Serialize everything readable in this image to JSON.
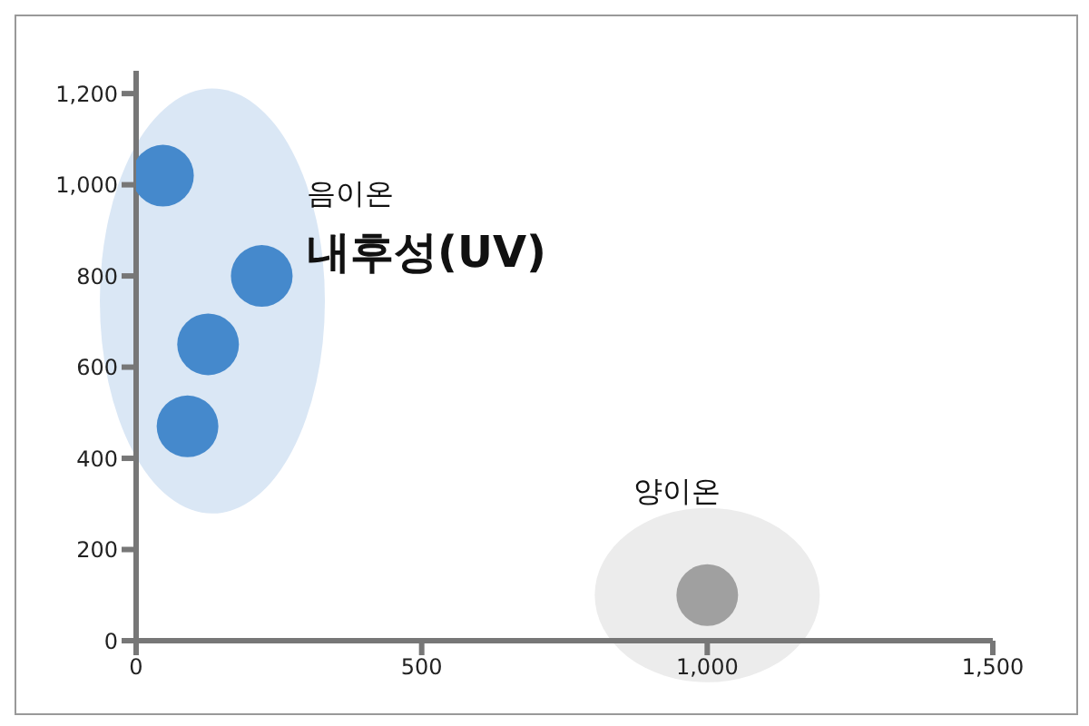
{
  "chart_data": {
    "type": "scatter",
    "series": [
      {
        "color": "#4589cc",
        "x": [
          47,
          220,
          126,
          90
        ],
        "values": [
          1020,
          800,
          650,
          470
        ]
      },
      {
        "color": "#a0a0a0",
        "x": [
          1000
        ],
        "values": [
          100
        ]
      }
    ],
    "xlim": [
      0,
      1500
    ],
    "xticks": [
      0,
      500,
      {
        "value": 1000,
        "label": "1,000"
      },
      {
        "value": 1500,
        "label": "1,500"
      }
    ],
    "ylim": [
      0,
      1250
    ],
    "yticks": [
      0,
      200,
      400,
      600,
      800,
      {
        "value": 1000,
        "label": "1,000"
      },
      {
        "value": 1200,
        "label": "1,200"
      }
    ],
    "grid": false,
    "legend": false,
    "marker": "circle",
    "annotations": [
      "음이온",
      "내후성(UV)",
      "양이온"
    ]
  }
}
